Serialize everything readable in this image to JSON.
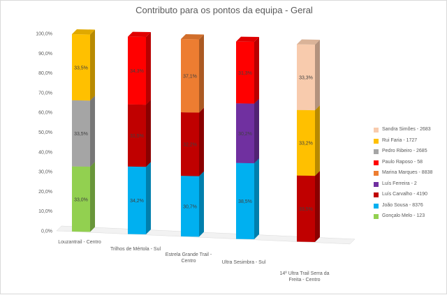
{
  "chart_data": {
    "type": "bar",
    "title": "Contributo para os pontos da equipa - Geral",
    "xlabel": "",
    "ylabel": "",
    "stacked": true,
    "percent": true,
    "ylim": [
      0,
      100
    ],
    "yticks": [
      "0,0%",
      "10,0%",
      "20,0%",
      "30,0%",
      "40,0%",
      "50,0%",
      "60,0%",
      "70,0%",
      "80,0%",
      "90,0%",
      "100,0%"
    ],
    "legend_position": "right",
    "categories": [
      "Louzantrail - Centro",
      "Trilhos de Mértola - Sul",
      "Estrela Grande Trail - Centro",
      "Ultra Sesimbra - Sul",
      "14º Ultra Trail Serra da Freita - Centro"
    ],
    "series": [
      {
        "name": "Gonçalo Melo - 123",
        "color": "#92d050",
        "values": [
          33.0,
          0,
          0,
          0,
          0
        ],
        "labels": [
          "33,0%",
          "",
          "",
          "",
          ""
        ]
      },
      {
        "name": "João Sousa - 8376",
        "color": "#00b0f0",
        "values": [
          0,
          34.2,
          30.7,
          38.5,
          0
        ],
        "labels": [
          "",
          "34,2%",
          "30,7%",
          "38,5%",
          ""
        ]
      },
      {
        "name": "Luís Carvalho - 4190",
        "color": "#c00000",
        "values": [
          0,
          31.5,
          32.2,
          0,
          33.5
        ],
        "labels": [
          "",
          "31,5%",
          "32,2%",
          "",
          "33,5%"
        ]
      },
      {
        "name": "Luís Ferreira - 2",
        "color": "#7030a0",
        "values": [
          0,
          0,
          0,
          30.2,
          0
        ],
        "labels": [
          "",
          "",
          "",
          "30,2%",
          ""
        ]
      },
      {
        "name": "Marina Marques - 8838",
        "color": "#ed7d31",
        "values": [
          0,
          0,
          37.1,
          0,
          0
        ],
        "labels": [
          "",
          "",
          "37,1%",
          "",
          ""
        ]
      },
      {
        "name": "Paulo Raposo - 58",
        "color": "#ff0000",
        "values": [
          0,
          34.3,
          0,
          31.3,
          0
        ],
        "labels": [
          "",
          "34,3%",
          "",
          "31,3%",
          ""
        ]
      },
      {
        "name": "Pedro Ribeiro - 2685",
        "color": "#a5a5a5",
        "values": [
          33.5,
          0,
          0,
          0,
          0
        ],
        "labels": [
          "33,5%",
          "",
          "",
          "",
          ""
        ]
      },
      {
        "name": "Rui Faria - 1727",
        "color": "#ffc000",
        "values": [
          33.5,
          0,
          0,
          0,
          33.2
        ],
        "labels": [
          "33,5%",
          "",
          "",
          "",
          "33,2%"
        ]
      },
      {
        "name": "Sandra Simões - 2683",
        "color": "#f8cbad",
        "values": [
          0,
          0,
          0,
          0,
          33.3
        ],
        "labels": [
          "",
          "",
          "",
          "",
          "33,3%"
        ]
      }
    ]
  }
}
